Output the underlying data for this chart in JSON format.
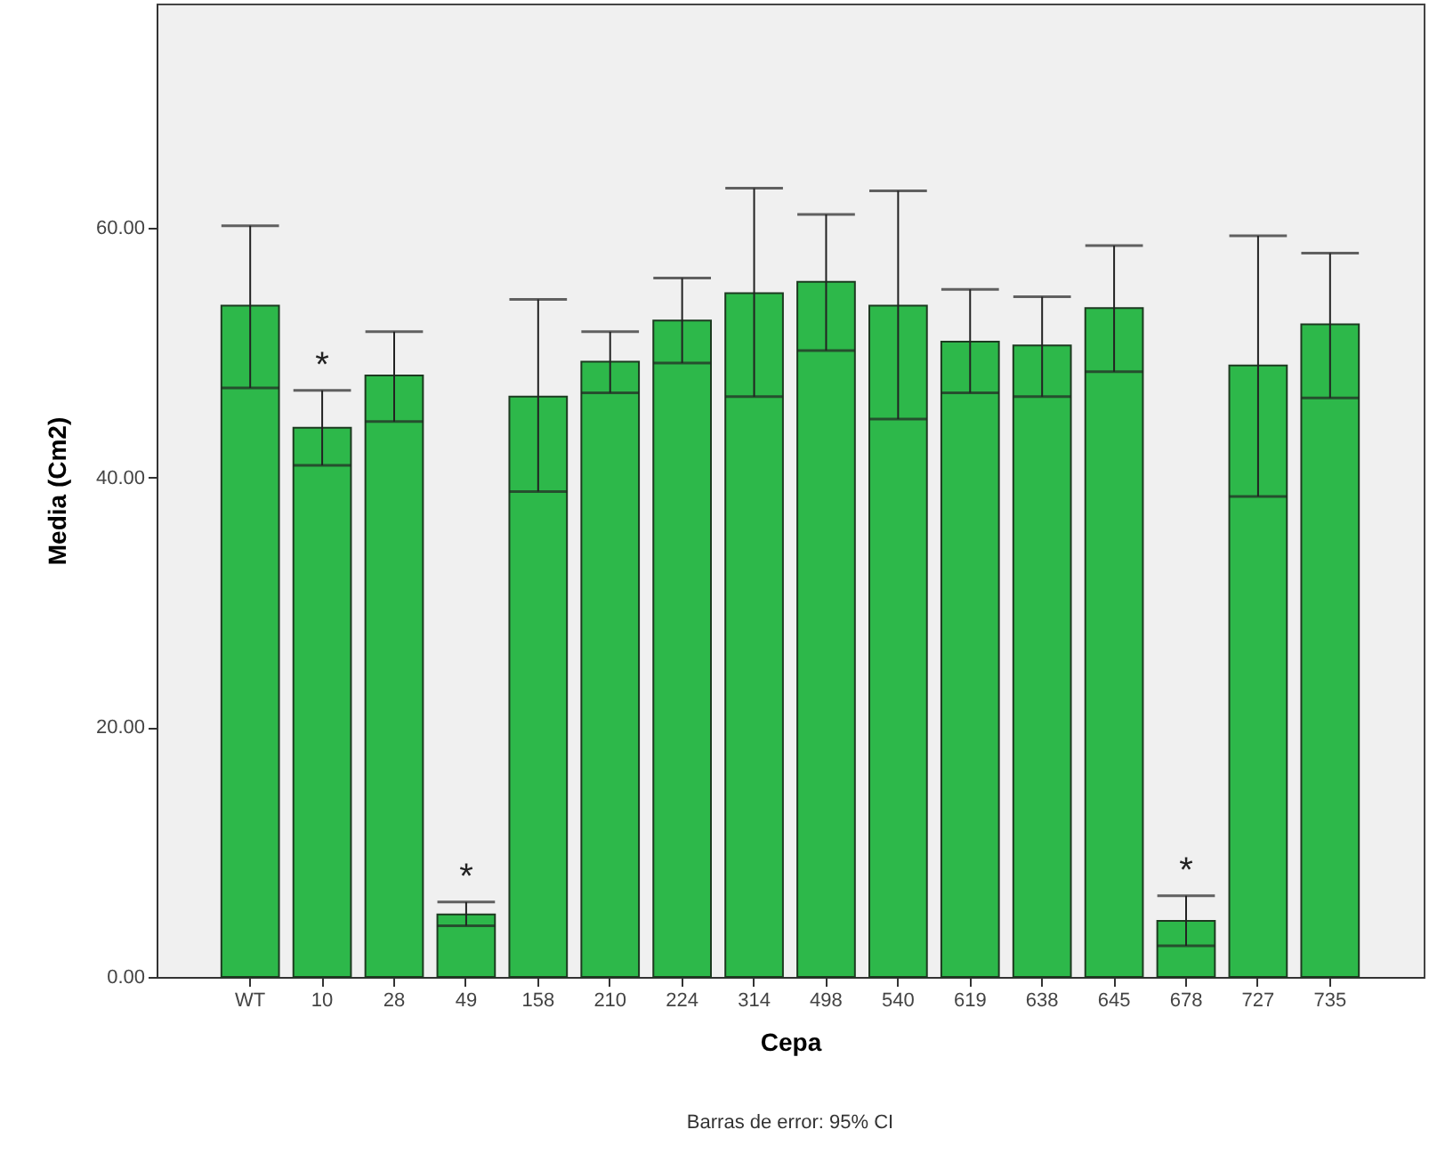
{
  "chart_data": {
    "type": "bar",
    "xlabel": "Cepa",
    "ylabel": "Media (Cm2)",
    "categories": [
      "WT",
      "10",
      "28",
      "49",
      "158",
      "210",
      "224",
      "314",
      "498",
      "540",
      "619",
      "638",
      "645",
      "678",
      "727",
      "735"
    ],
    "values": [
      53.8,
      44.0,
      48.2,
      5.0,
      46.5,
      49.3,
      52.6,
      54.8,
      55.7,
      53.8,
      50.9,
      50.6,
      53.6,
      4.5,
      49.0,
      52.3
    ],
    "errors": [
      [
        47.2,
        60.2
      ],
      [
        41.0,
        47.0
      ],
      [
        44.5,
        51.7
      ],
      [
        4.1,
        6.0
      ],
      [
        38.9,
        54.3
      ],
      [
        46.8,
        51.7
      ],
      [
        49.2,
        56.0
      ],
      [
        46.5,
        63.2
      ],
      [
        50.2,
        61.1
      ],
      [
        44.7,
        63.0
      ],
      [
        46.8,
        55.1
      ],
      [
        46.5,
        54.5
      ],
      [
        48.5,
        58.6
      ],
      [
        2.5,
        6.5
      ],
      [
        38.5,
        59.4
      ],
      [
        46.4,
        58.0
      ]
    ],
    "color": "#2db84a",
    "ylim": [
      0,
      78
    ],
    "yticks": [
      {
        "value": 0,
        "label": "0.00"
      },
      {
        "value": 20,
        "label": "20.00"
      },
      {
        "value": 40,
        "label": "40.00"
      },
      {
        "value": 60,
        "label": "60.00"
      }
    ],
    "grid": false,
    "annotations": [
      {
        "text": "*",
        "x": "10",
        "y": 47.0
      },
      {
        "text": "*",
        "x": "49",
        "y": 6.0
      },
      {
        "text": "*",
        "x": "678",
        "y": 6.5
      },
      "Barras de error: 95% CI"
    ]
  }
}
